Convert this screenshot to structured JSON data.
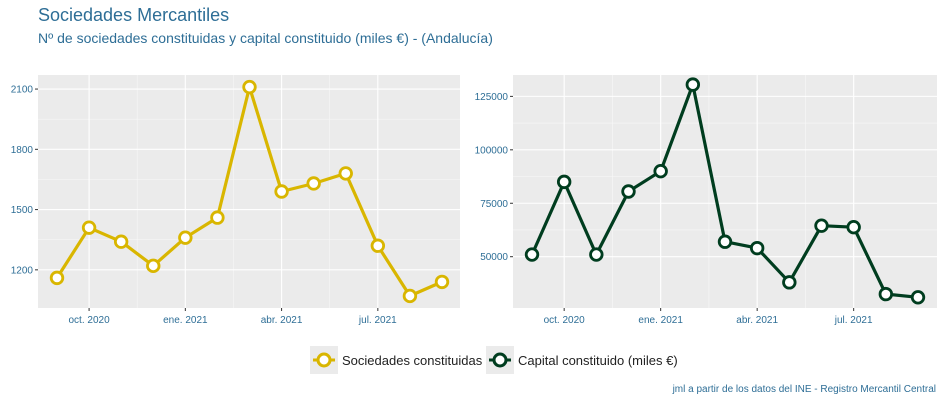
{
  "header": {
    "title": "Sociedades Mercantiles",
    "subtitle": "Nº de sociedades constituidas y capital constituido (miles €) - (Andalucía)"
  },
  "legend": {
    "series1": "Sociedades constituidas",
    "series2": "Capital constituido (miles €)"
  },
  "caption": "jml a partir de los datos del INE - Registro Mercantil Central",
  "colors": {
    "series1": "#d9b600",
    "series2": "#003d1f",
    "panel": "#ebebeb",
    "grid": "#ffffff",
    "text": "#2e6e96"
  },
  "chart_data": [
    {
      "type": "line",
      "series_name": "Sociedades constituidas",
      "color": "#d9b600",
      "x": [
        "2020-09",
        "2020-10",
        "2020-11",
        "2020-12",
        "2021-01",
        "2021-02",
        "2021-03",
        "2021-04",
        "2021-05",
        "2021-06",
        "2021-07",
        "2021-08",
        "2021-09"
      ],
      "values": [
        1160,
        1410,
        1340,
        1220,
        1360,
        1460,
        2110,
        1590,
        1630,
        1680,
        1320,
        1070,
        1140
      ],
      "ylim": [
        1010,
        2170
      ],
      "yticks": [
        1200,
        1500,
        1800,
        2100
      ],
      "xticks": [
        {
          "index": 1,
          "label": "oct. 2020"
        },
        {
          "index": 4,
          "label": "ene. 2021"
        },
        {
          "index": 7,
          "label": "abr. 2021"
        },
        {
          "index": 10,
          "label": "jul. 2021"
        }
      ]
    },
    {
      "type": "line",
      "series_name": "Capital constituido (miles €)",
      "color": "#003d1f",
      "x": [
        "2020-09",
        "2020-10",
        "2020-11",
        "2020-12",
        "2021-01",
        "2021-02",
        "2021-03",
        "2021-04",
        "2021-05",
        "2021-06",
        "2021-07",
        "2021-08",
        "2021-09"
      ],
      "values": [
        51000,
        85000,
        51000,
        80500,
        90000,
        130500,
        57000,
        54000,
        38000,
        64500,
        63800,
        32500,
        31000
      ],
      "ylim": [
        26000,
        135000
      ],
      "yticks": [
        50000,
        75000,
        100000,
        125000
      ],
      "xticks": [
        {
          "index": 1,
          "label": "oct. 2020"
        },
        {
          "index": 4,
          "label": "ene. 2021"
        },
        {
          "index": 7,
          "label": "abr. 2021"
        },
        {
          "index": 10,
          "label": "jul. 2021"
        }
      ]
    }
  ]
}
